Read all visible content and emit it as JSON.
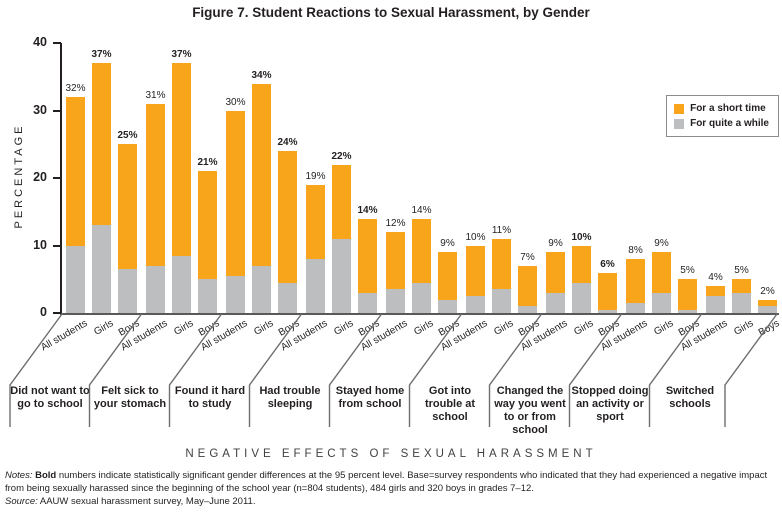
{
  "chart_data": {
    "type": "stacked-bar",
    "title": "Figure 7. Student Reactions to Sexual Harassment, by Gender",
    "ylabel": "PERCENTAGE",
    "xlabel": "NEGATIVE EFFECTS OF SEXUAL HARASSMENT",
    "ylim": [
      0,
      40
    ],
    "yticks": [
      0,
      10,
      20,
      30,
      40
    ],
    "grid": false,
    "legend_position": "top-right",
    "legend": [
      {
        "label": "For a short time",
        "color": "#F9A51B"
      },
      {
        "label": "For quite a while",
        "color": "#BDBEC0"
      }
    ],
    "bar_labels": [
      "All students",
      "Girls",
      "Boys"
    ],
    "value_suffix": "%",
    "groups": [
      {
        "category": "Did not want to go to school",
        "totals": [
          32,
          37,
          25
        ],
        "quite_a_while": [
          10,
          13,
          6.5
        ],
        "bold": [
          false,
          true,
          true
        ]
      },
      {
        "category": "Felt sick to your stomach",
        "totals": [
          31,
          37,
          21
        ],
        "quite_a_while": [
          7,
          8.5,
          5
        ],
        "bold": [
          false,
          true,
          true
        ]
      },
      {
        "category": "Found it hard to study",
        "totals": [
          30,
          34,
          24
        ],
        "quite_a_while": [
          5.5,
          7,
          4.5
        ],
        "bold": [
          false,
          true,
          true
        ]
      },
      {
        "category": "Had trouble sleeping",
        "totals": [
          19,
          22,
          14
        ],
        "quite_a_while": [
          8,
          11,
          3
        ],
        "bold": [
          false,
          true,
          true
        ]
      },
      {
        "category": "Stayed home from school",
        "totals": [
          12,
          14,
          9
        ],
        "quite_a_while": [
          3.5,
          4.5,
          2
        ],
        "bold": [
          false,
          false,
          false
        ]
      },
      {
        "category": "Got into trouble at school",
        "totals": [
          10,
          11,
          7
        ],
        "quite_a_while": [
          2.5,
          3.5,
          1
        ],
        "bold": [
          false,
          false,
          false
        ]
      },
      {
        "category": "Changed the way you went to or from school",
        "totals": [
          9,
          10,
          6
        ],
        "quite_a_while": [
          3,
          4.5,
          0.5
        ],
        "bold": [
          false,
          true,
          true
        ]
      },
      {
        "category": "Stopped doing an activity or sport",
        "totals": [
          8,
          9,
          5
        ],
        "quite_a_while": [
          1.5,
          3,
          0.5
        ],
        "bold": [
          false,
          false,
          false
        ]
      },
      {
        "category": "Switched schools",
        "totals": [
          4,
          5,
          2
        ],
        "quite_a_while": [
          2.5,
          3,
          1
        ],
        "bold": [
          false,
          false,
          false
        ]
      }
    ]
  },
  "footer": {
    "notes_label": "Notes: ",
    "notes_bold_word": "Bold",
    "notes_text": " numbers indicate statistically significant gender differences at the 95 percent level. Base=survey respondents who indicated that they had experienced a negative impact from being sexually harassed since the beginning of the school year (n=804 students), 484 girls and 320 boys in grades 7–12.",
    "source_label": "Source:",
    "source_text": " AAUW sexual harassment survey, May–June 2011."
  }
}
